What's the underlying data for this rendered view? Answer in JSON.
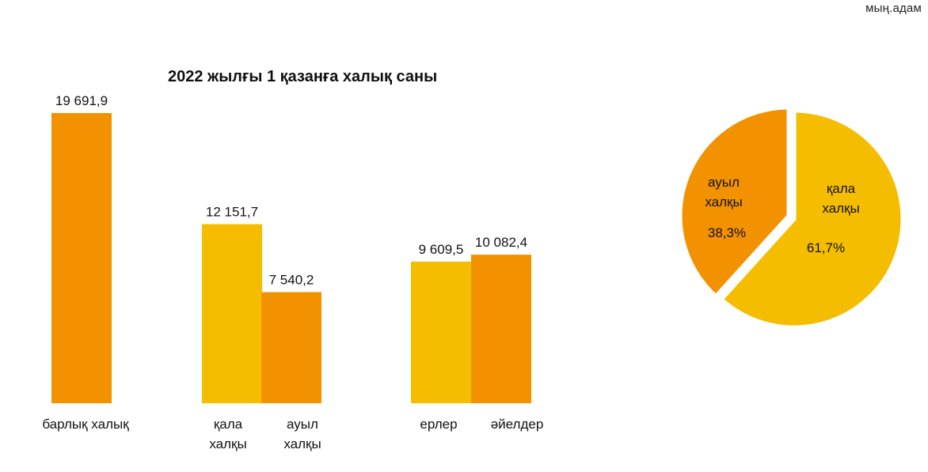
{
  "unit_label": "мың.адам",
  "chart_data": [
    {
      "type": "bar",
      "title": "2022 жылғы 1 қазанға халық саны",
      "ylim": [
        0,
        21000
      ],
      "grid": false,
      "bars": [
        {
          "label_lines": [
            "барлық халық"
          ],
          "value": 19691.9,
          "value_label": "19 691,9",
          "color": "#F39200"
        },
        {
          "label_lines": [
            "қала",
            "халқы"
          ],
          "value": 12151.7,
          "value_label": "12 151,7",
          "color": "#F5BD00"
        },
        {
          "label_lines": [
            "ауыл",
            "халқы"
          ],
          "value": 7540.2,
          "value_label": "7 540,2",
          "color": "#F39200"
        },
        {
          "label_lines": [
            "ерлер"
          ],
          "value": 9609.5,
          "value_label": "9 609,5",
          "color": "#F5BD00"
        },
        {
          "label_lines": [
            "әйелдер"
          ],
          "value": 10082.4,
          "value_label": "10 082,4",
          "color": "#F39200"
        }
      ]
    },
    {
      "type": "pie",
      "slices": [
        {
          "label_lines": [
            "қала",
            "халқы"
          ],
          "value": 61.7,
          "pct_label": "61,7%",
          "color": "#F5BD00"
        },
        {
          "label_lines": [
            "ауыл",
            "халқы"
          ],
          "value": 38.3,
          "pct_label": "38,3%",
          "color": "#F39200"
        }
      ]
    }
  ]
}
